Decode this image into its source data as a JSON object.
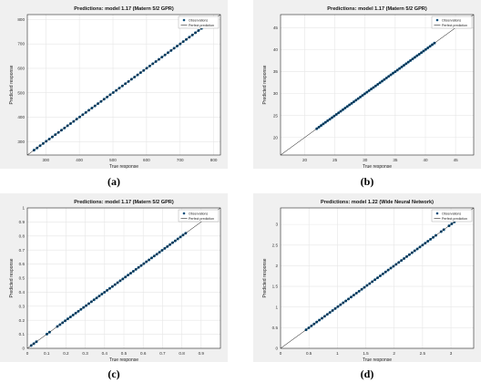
{
  "chart_data": [
    {
      "type": "scatter",
      "title": "Predictions: model 1.17 (Matern 5/2 GPR)",
      "xlabel": "True response",
      "ylabel": "Predicted response",
      "xlim": [
        245,
        820
      ],
      "ylim": [
        245,
        820
      ],
      "xticks": [
        300,
        400,
        500,
        600,
        700,
        800
      ],
      "yticks": [
        300,
        400,
        500,
        600,
        700,
        800
      ],
      "legend": [
        "Observations",
        "Perfect prediction"
      ],
      "legend_position": "top-right",
      "grid": true,
      "observations": {
        "x_range": [
          265,
          800
        ],
        "point_count": 60,
        "gaps": []
      },
      "caption": "(a)"
    },
    {
      "type": "scatter",
      "title": "Predictions: model 1.17 (Matern 5/2 GPR)",
      "xlabel": "True response",
      "ylabel": "Predicted response",
      "xlim": [
        16,
        48
      ],
      "ylim": [
        16,
        48
      ],
      "xticks": [
        20,
        25,
        30,
        35,
        40,
        45
      ],
      "yticks": [
        20,
        25,
        30,
        35,
        40,
        45
      ],
      "legend": [
        "Observations",
        "Perfect prediction"
      ],
      "legend_position": "top-right",
      "grid": true,
      "observations": {
        "x_range": [
          22,
          41.5
        ],
        "point_count": 55,
        "gaps": []
      },
      "caption": "(b)"
    },
    {
      "type": "scatter",
      "title": "Predictions: model 1.17 (Matern 5/2 GPR)",
      "xlabel": "True response",
      "ylabel": "Predicted response",
      "xlim": [
        0,
        1
      ],
      "ylim": [
        0,
        1
      ],
      "xticks": [
        0,
        0.1,
        0.2,
        0.3,
        0.4,
        0.5,
        0.6,
        0.7,
        0.8,
        0.9
      ],
      "yticks": [
        0,
        0.1,
        0.2,
        0.3,
        0.4,
        0.5,
        0.6,
        0.7,
        0.8,
        0.9,
        1
      ],
      "legend": [
        "Observations",
        "Perfect prediction"
      ],
      "legend_position": "top-right",
      "grid": true,
      "observations": {
        "x_range": [
          0.02,
          0.82
        ],
        "point_count": 60,
        "gaps": [
          [
            0.05,
            0.09
          ],
          [
            0.12,
            0.15
          ]
        ]
      },
      "caption": "(c)"
    },
    {
      "type": "scatter",
      "title": "Predictions: model 1.22 (Wide Neural Network)",
      "xlabel": "True response",
      "ylabel": "Predicted response",
      "xlim": [
        0,
        3.4
      ],
      "ylim": [
        0,
        3.4
      ],
      "xticks": [
        0,
        0.5,
        1,
        1.5,
        2,
        2.5,
        3
      ],
      "yticks": [
        0,
        0.5,
        1,
        1.5,
        2,
        2.5,
        3
      ],
      "legend": [
        "Observations",
        "Perfect prediction"
      ],
      "legend_position": "top-right",
      "grid": true,
      "observations": {
        "x_range": [
          0.45,
          3.2
        ],
        "point_count": 60,
        "gaps": [
          [
            2.75,
            2.82
          ],
          [
            2.9,
            2.96
          ]
        ]
      },
      "caption": "(d)"
    }
  ]
}
